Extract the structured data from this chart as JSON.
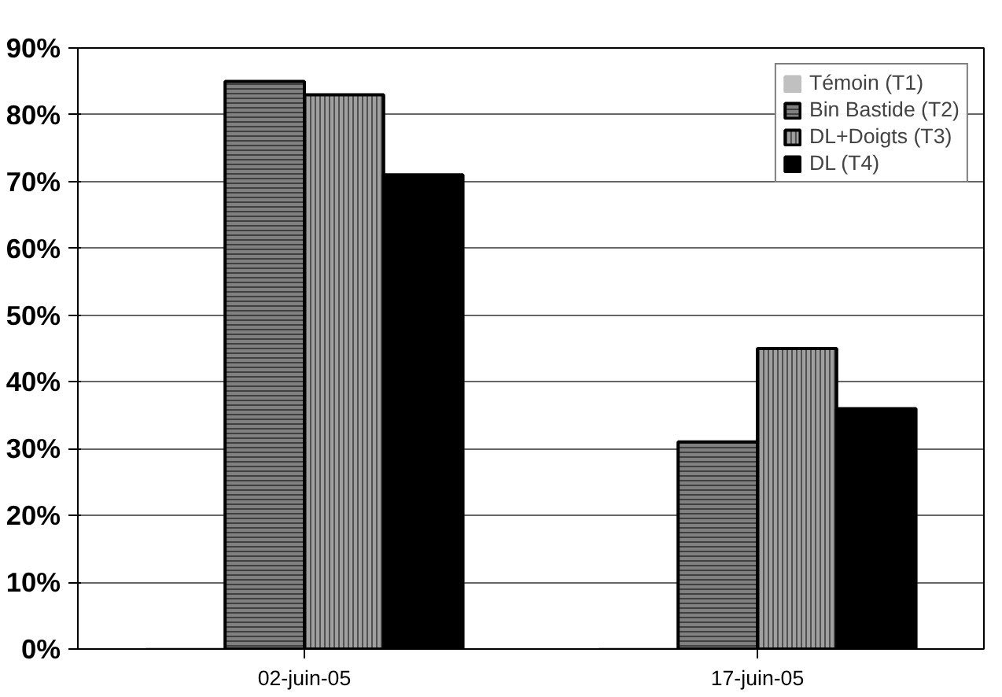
{
  "chart_data": {
    "type": "bar",
    "categories": [
      "02-juin-05",
      "17-juin-05"
    ],
    "series": [
      {
        "name": "Témoin (T1)",
        "color": "#c0c0c0",
        "values": [
          0,
          0
        ]
      },
      {
        "name": "Bin Bastide (T2)",
        "color": "#808080",
        "values": [
          85,
          31
        ]
      },
      {
        "name": "DL+Doigts (T3)",
        "color": "#a0a0a0",
        "values": [
          83,
          45
        ]
      },
      {
        "name": "DL (T4)",
        "color": "#000000",
        "values": [
          71,
          36
        ]
      }
    ],
    "ylim": [
      0,
      90
    ],
    "yticks": [
      {
        "value": 0,
        "label": "0%"
      },
      {
        "value": 10,
        "label": "10%"
      },
      {
        "value": 20,
        "label": "20%"
      },
      {
        "value": 30,
        "label": "30%"
      },
      {
        "value": 40,
        "label": "40%"
      },
      {
        "value": 50,
        "label": "50%"
      },
      {
        "value": 60,
        "label": "60%"
      },
      {
        "value": 70,
        "label": "70%"
      },
      {
        "value": 80,
        "label": "80%"
      },
      {
        "value": 90,
        "label": "90%"
      }
    ],
    "grid": "y",
    "legend": "top right"
  }
}
